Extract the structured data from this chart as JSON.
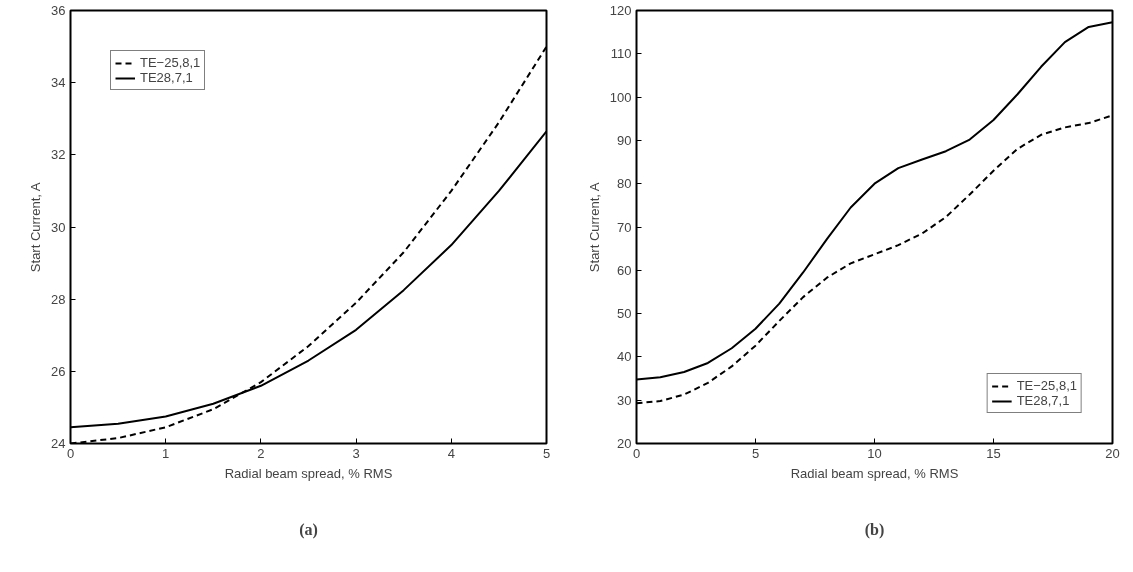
{
  "chart_data": [
    {
      "type": "line",
      "x": [
        0,
        0.5,
        1,
        1.5,
        2,
        2.5,
        3,
        3.5,
        4,
        4.5,
        5
      ],
      "xlabel": "Radial beam spread, % RMS",
      "ylabel": "Start Current, A",
      "xlim": [
        0,
        5
      ],
      "ylim": [
        24,
        36
      ],
      "xticks": [
        0,
        1,
        2,
        3,
        4,
        5
      ],
      "yticks": [
        24,
        26,
        28,
        30,
        32,
        34,
        36
      ],
      "grid": false,
      "legend": "top left",
      "annotations": [
        "(a)"
      ],
      "series": [
        {
          "name": "TE−25,8,1",
          "color": "#000000",
          "line_style": "dashed",
          "values": [
            24.0,
            24.15,
            24.45,
            24.95,
            25.7,
            26.7,
            27.9,
            29.3,
            31.0,
            32.9,
            35.0
          ]
        },
        {
          "name": "TE28,7,1",
          "color": "#000000",
          "line_style": "solid",
          "values": [
            24.45,
            24.55,
            24.75,
            25.1,
            25.6,
            26.3,
            27.15,
            28.25,
            29.5,
            31.0,
            32.65
          ]
        }
      ]
    },
    {
      "type": "line",
      "x": [
        0,
        1,
        2,
        3,
        4,
        5,
        6,
        7,
        8,
        9,
        10,
        11,
        12,
        13,
        14,
        15,
        16,
        17,
        18,
        19,
        20
      ],
      "xlabel": "Radial beam spread, % RMS",
      "ylabel": "Start Current, A",
      "xlim": [
        0,
        20
      ],
      "ylim": [
        20,
        120
      ],
      "xticks": [
        0,
        5,
        10,
        15,
        20
      ],
      "yticks": [
        20,
        30,
        40,
        50,
        60,
        70,
        80,
        90,
        100,
        110,
        120
      ],
      "grid": false,
      "legend": "bottom right",
      "annotations": [
        "(b)"
      ],
      "series": [
        {
          "name": "TE−25,8,1",
          "color": "#000000",
          "line_style": "dashed",
          "values": [
            29.3,
            29.8,
            31.3,
            34.0,
            37.8,
            42.6,
            48.3,
            53.8,
            58.3,
            61.6,
            63.7,
            65.8,
            68.5,
            72.3,
            77.5,
            83,
            88,
            91.3,
            93,
            94,
            95.8
          ]
        },
        {
          "name": "TE28,7,1",
          "color": "#000000",
          "line_style": "solid",
          "values": [
            34.8,
            35.3,
            36.5,
            38.6,
            42,
            46.5,
            52.3,
            59.5,
            67.2,
            74.5,
            80,
            83.6,
            85.6,
            87.5,
            90.2,
            94.7,
            100.6,
            107,
            112.7,
            116.2,
            117.3
          ]
        }
      ]
    }
  ]
}
